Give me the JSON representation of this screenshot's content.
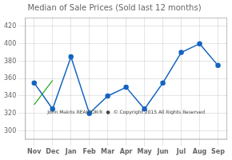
{
  "chart_data": {
    "type": "line",
    "title": "Median of Sale Prices (Sold last 12 months)",
    "categories": [
      "Nov",
      "Dec",
      "Jan",
      "Feb",
      "Mar",
      "Apr",
      "May",
      "Jun",
      "Jul",
      "Aug",
      "Sep"
    ],
    "series": [
      {
        "color": "#1464C0",
        "marker": "circle",
        "values": [
          355,
          325,
          385,
          320,
          340,
          350,
          325,
          355,
          390,
          400,
          375
        ]
      }
    ],
    "trend": {
      "start": 330,
      "end": 358,
      "color": "#22AA22"
    },
    "annotations": [
      "John Makris REALTOR®  ●  © Copyright 2015 All Rights Reserved"
    ],
    "ylim": [
      290,
      430
    ],
    "yticks": [
      300,
      320,
      340,
      360,
      380,
      400,
      420
    ],
    "grid": true
  }
}
